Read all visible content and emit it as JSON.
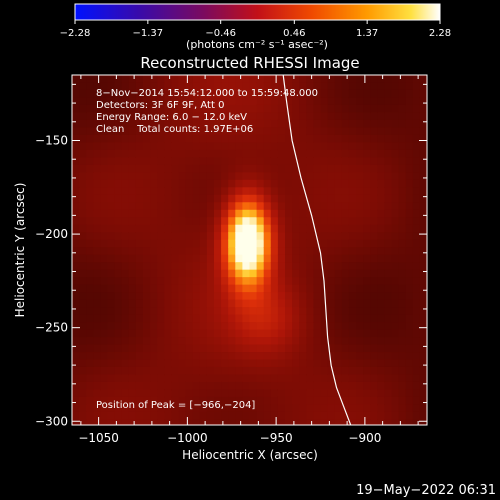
{
  "chart_data": {
    "type": "heatmap",
    "title": "Reconstructed RHESSI Image",
    "xlabel": "Heliocentric X (arcsec)",
    "ylabel": "Heliocentric Y (arcsec)",
    "xlim": [
      -1065,
      -865
    ],
    "ylim": [
      -302,
      -115
    ],
    "x_ticks": [
      -1050,
      -1000,
      -950,
      -900
    ],
    "x_tick_labels": [
      "−1050",
      "−1000",
      "−950",
      "−900"
    ],
    "y_ticks": [
      -150,
      -200,
      -250,
      -300
    ],
    "y_tick_labels": [
      "−150",
      "−200",
      "−250",
      "−300"
    ],
    "colorbar": {
      "range": [
        -2.28,
        2.28
      ],
      "ticks": [
        -2.28,
        -1.37,
        -0.46,
        0.46,
        1.37,
        2.28
      ],
      "tick_labels": [
        "−2.28",
        "−1.37",
        "−0.46",
        "0.46",
        "1.37",
        "2.28"
      ],
      "units_label": "(photons cm⁻² s⁻¹ asec⁻²)",
      "colormap": "sunset: blue-purple-red-orange-yellow-white"
    },
    "annotations": {
      "time_range": "8−Nov−2014 15:54:12.000 to 15:59:48.000",
      "detectors": "Detectors: 3F 6F 9F, Att 0",
      "energy": "Energy Range: 6.0 − 12.0 keV",
      "clean": "Clean    Total counts: 1.97E+06",
      "peak": "Position of Peak = [−966,−204]"
    },
    "peak": {
      "x": -966,
      "y": -204
    },
    "sources": [
      {
        "x": -966,
        "y": -204,
        "sigma_x": 9,
        "sigma_y": 16,
        "amplitude": 2.28
      },
      {
        "x": -955,
        "y": -245,
        "sigma_x": 14,
        "sigma_y": 14,
        "amplitude": 0.4
      }
    ],
    "limb": [
      [
        -946,
        -115
      ],
      [
        -944,
        -130
      ],
      [
        -941,
        -150
      ],
      [
        -936,
        -170
      ],
      [
        -930,
        -190
      ],
      [
        -925,
        -210
      ],
      [
        -923,
        -225
      ],
      [
        -922,
        -240
      ],
      [
        -921,
        -255
      ],
      [
        -919,
        -270
      ],
      [
        -916,
        -282
      ],
      [
        -912,
        -292
      ],
      [
        -908,
        -302
      ]
    ],
    "limb_color": "#ffffff",
    "grid": false
  },
  "footer": {
    "date": "19−May−2022 06:31"
  }
}
